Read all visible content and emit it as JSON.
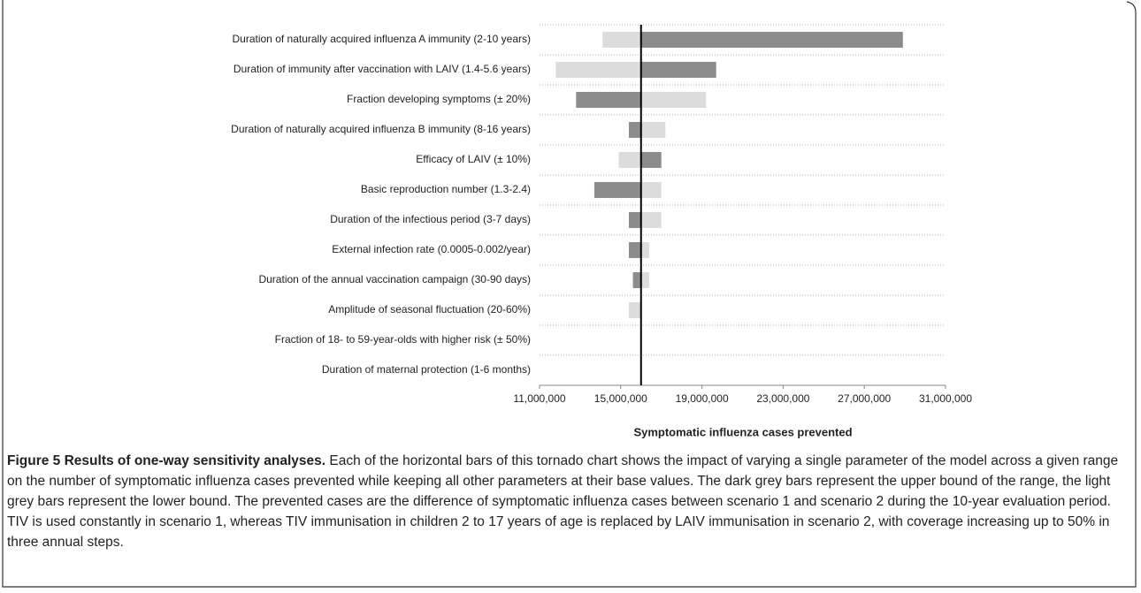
{
  "chart_data": {
    "type": "tornado",
    "categories": [
      "Duration of naturally acquired influenza A immunity (2-10 years)",
      "Duration of immunity after vaccination with LAIV (1.4-5.6 years)",
      "Fraction developing symptoms (± 20%)",
      "Duration of naturally acquired influenza B immunity (8-16 years)",
      "Efficacy of LAIV (± 10%)",
      "Basic reproduction number (1.3-2.4)",
      "Duration of the infectious period (3-7 days)",
      "External infection rate (0.0005-0.002/year)",
      "Duration of the annual vaccination campaign (30-90 days)",
      "Amplitude of seasonal fluctuation (20-60%)",
      "Fraction of 18- to 59-year-olds with higher risk (± 50%)",
      "Duration of maternal protection (1-6 months)"
    ],
    "base": 16000000,
    "series": [
      {
        "color": "#8c8c8c",
        "values": [
          28900000,
          19700000,
          12800000,
          15400000,
          17000000,
          13700000,
          15400000,
          15400000,
          15600000,
          16000000,
          16000000,
          16000000
        ]
      },
      {
        "color": "#dcdcdc",
        "values": [
          14100000,
          11800000,
          19200000,
          17200000,
          14900000,
          17000000,
          17000000,
          16400000,
          16400000,
          15400000,
          16000000,
          16000000
        ]
      }
    ],
    "xlim": [
      11000000,
      31000000
    ],
    "xticks": [
      {
        "value": 11000000,
        "label": "11,000,000"
      },
      {
        "value": 15000000,
        "label": "15,000,000"
      },
      {
        "value": 19000000,
        "label": "19,000,000"
      },
      {
        "value": 23000000,
        "label": "23,000,000"
      },
      {
        "value": 27000000,
        "label": "27,000,000"
      },
      {
        "value": 31000000,
        "label": "31,000,000"
      }
    ],
    "xlabel": "Symptomatic influenza cases prevented",
    "grid": true
  },
  "caption": {
    "label": "Figure 5",
    "title": "Results of one-way sensitivity analyses.",
    "text": "Each of the horizontal bars of this tornado chart shows the impact of varying a single parameter of the model across a given range on the number of symptomatic influenza cases prevented while keeping all other parameters at their base values. The dark grey bars represent the upper bound of the range, the light grey bars represent the lower bound. The prevented cases are the difference of symptomatic influenza cases between scenario 1 and scenario 2 during the 10-year evaluation period. TIV is used constantly in scenario 1, whereas TIV immunisation in children 2 to 17 years of age is replaced by LAIV immunisation in scenario 2, with coverage increasing up to 50% in three annual steps."
  }
}
